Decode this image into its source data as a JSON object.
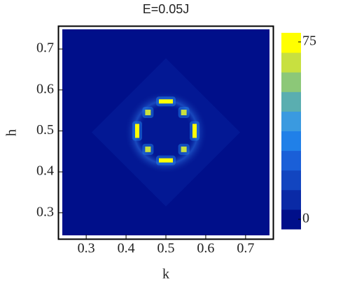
{
  "chart_data": {
    "type": "heatmap",
    "title": "E=0.05J",
    "x_label": "k",
    "y_label": "h",
    "xlim": [
      0.24,
      0.76
    ],
    "ylim": [
      0.245,
      0.748
    ],
    "xticks": [
      0.3,
      0.4,
      0.5,
      0.6,
      0.7
    ],
    "yticks": [
      0.3,
      0.4,
      0.5,
      0.6,
      0.7
    ],
    "background_color": "#000f8a",
    "spots": {
      "x": [
        0.5,
        0.5,
        0.428,
        0.572,
        0.455,
        0.545,
        0.455,
        0.545
      ],
      "y": [
        0.572,
        0.428,
        0.5,
        0.5,
        0.455,
        0.455,
        0.545,
        0.545
      ],
      "values": [
        75,
        75,
        75,
        75,
        60,
        60,
        60,
        60
      ]
    },
    "colorbar": {
      "clim": [
        0,
        75
      ],
      "cticks": [
        0,
        75
      ],
      "colors": [
        "#000f8a",
        "#0a2aa6",
        "#1245c0",
        "#1a5fd8",
        "#2080e8",
        "#3a9ae0",
        "#5aaeb0",
        "#8cc878",
        "#c8e040",
        "#ffff00"
      ]
    }
  }
}
